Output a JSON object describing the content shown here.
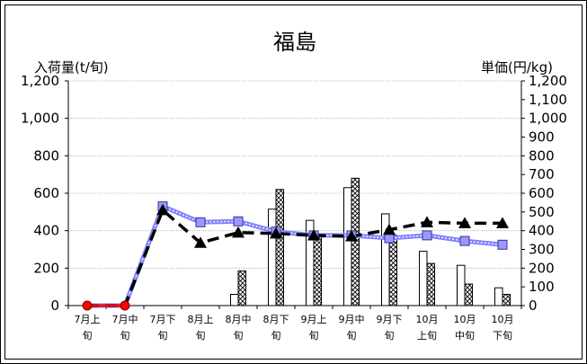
{
  "chart_data": {
    "type": "bar",
    "title": "福島",
    "ylabel_left": "入荷量(t/旬)",
    "ylabel_right": "単価(円/kg)",
    "ylim_left": [
      0,
      1200
    ],
    "ylim_right": [
      0,
      1200
    ],
    "yticks_left": [
      "0",
      "200",
      "400",
      "600",
      "800",
      "1,000",
      "1,200"
    ],
    "yticks_right": [
      "0",
      "100",
      "200",
      "300",
      "400",
      "500",
      "600",
      "700",
      "800",
      "900",
      "1,000",
      "1,100",
      "1,200"
    ],
    "categories": [
      [
        "7月上",
        "旬"
      ],
      [
        "7月中",
        "旬"
      ],
      [
        "7月下",
        "旬"
      ],
      [
        "8月上",
        "旬"
      ],
      [
        "8月中",
        "旬"
      ],
      [
        "8月下",
        "旬"
      ],
      [
        "9月上",
        "旬"
      ],
      [
        "9月中",
        "旬"
      ],
      [
        "9月下",
        "旬"
      ],
      [
        "10月",
        "上旬"
      ],
      [
        "10月",
        "中旬"
      ],
      [
        "10月",
        "下旬"
      ]
    ],
    "bar_series": [
      {
        "style": "white",
        "values": [
          0,
          0,
          0,
          0,
          60,
          515,
          455,
          630,
          490,
          290,
          215,
          95
        ]
      },
      {
        "style": "crosshatch",
        "values": [
          0,
          0,
          0,
          0,
          185,
          620,
          375,
          680,
          375,
          225,
          115,
          60
        ]
      }
    ],
    "line_series": [
      {
        "style": "dashed-black-triangle",
        "axis": "right",
        "values": [
          0,
          0,
          510,
          335,
          390,
          385,
          375,
          370,
          405,
          445,
          440,
          440
        ]
      },
      {
        "style": "blue-square",
        "axis": "right",
        "values": [
          0,
          0,
          530,
          445,
          450,
          395,
          375,
          375,
          360,
          375,
          345,
          325
        ]
      },
      {
        "style": "red-circle",
        "axis": "right",
        "values": [
          0,
          0,
          null,
          null,
          null,
          null,
          null,
          null,
          null,
          null,
          null,
          null
        ]
      }
    ],
    "colors": {
      "grid": "#9a9a9a",
      "blue_line": "#8080ff",
      "blue_marker": "#9999ff",
      "red_line": "#ff0000",
      "black": "#000000"
    }
  }
}
